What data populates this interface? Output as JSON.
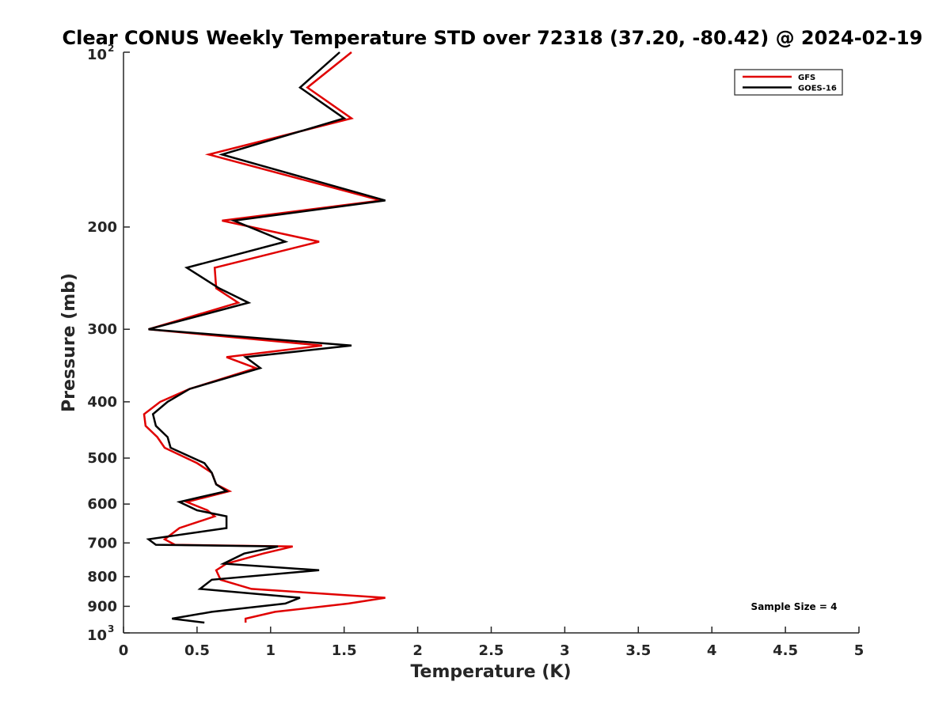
{
  "chart_data": {
    "type": "line",
    "title": "Clear CONUS Weekly Temperature STD over 72318 (37.20, -80.42) @ 2024-02-19",
    "xlabel": "Temperature (K)",
    "ylabel": "Pressure (mb)",
    "xlim": [
      0,
      5
    ],
    "ylim": [
      100,
      1000
    ],
    "yscale": "log",
    "y_reversed": true,
    "grid": false,
    "legend_position": "top-right",
    "x_ticks": [
      "0",
      "0.5",
      "1",
      "1.5",
      "2",
      "2.5",
      "3",
      "3.5",
      "4",
      "4.5",
      "5"
    ],
    "y_ticks": [
      {
        "value": 100,
        "base": "10",
        "exp": "2"
      },
      {
        "value": 200,
        "label": "200"
      },
      {
        "value": 300,
        "label": "300"
      },
      {
        "value": 400,
        "label": "400"
      },
      {
        "value": 500,
        "label": "500"
      },
      {
        "value": 600,
        "label": "600"
      },
      {
        "value": 700,
        "label": "700"
      },
      {
        "value": 800,
        "label": "800"
      },
      {
        "value": 900,
        "label": "900"
      },
      {
        "value": 1000,
        "base": "10",
        "exp": "3"
      }
    ],
    "annotation": "Sample Size = 4",
    "series": [
      {
        "name": "GFS",
        "color": "#e00000",
        "points": [
          [
            1.55,
            100
          ],
          [
            1.25,
            115
          ],
          [
            1.55,
            130
          ],
          [
            0.58,
            150
          ],
          [
            1.75,
            180
          ],
          [
            0.67,
            195
          ],
          [
            1.33,
            212
          ],
          [
            0.62,
            235
          ],
          [
            0.63,
            255
          ],
          [
            0.78,
            270
          ],
          [
            0.17,
            300
          ],
          [
            1.35,
            320
          ],
          [
            0.7,
            335
          ],
          [
            0.9,
            350
          ],
          [
            0.45,
            380
          ],
          [
            0.25,
            400
          ],
          [
            0.14,
            420
          ],
          [
            0.15,
            440
          ],
          [
            0.23,
            460
          ],
          [
            0.28,
            480
          ],
          [
            0.5,
            510
          ],
          [
            0.6,
            530
          ],
          [
            0.63,
            555
          ],
          [
            0.72,
            570
          ],
          [
            0.43,
            595
          ],
          [
            0.57,
            615
          ],
          [
            0.62,
            630
          ],
          [
            0.38,
            660
          ],
          [
            0.28,
            690
          ],
          [
            0.35,
            705
          ],
          [
            1.15,
            710
          ],
          [
            0.95,
            730
          ],
          [
            0.7,
            760
          ],
          [
            0.63,
            780
          ],
          [
            0.66,
            810
          ],
          [
            0.87,
            840
          ],
          [
            1.78,
            870
          ],
          [
            1.53,
            890
          ],
          [
            1.03,
            920
          ],
          [
            0.83,
            945
          ],
          [
            0.83,
            960
          ]
        ]
      },
      {
        "name": "GOES-16",
        "color": "#000000",
        "points": [
          [
            1.47,
            100
          ],
          [
            1.2,
            115
          ],
          [
            1.5,
            130
          ],
          [
            0.67,
            150
          ],
          [
            1.78,
            180
          ],
          [
            0.75,
            195
          ],
          [
            1.1,
            212
          ],
          [
            0.43,
            235
          ],
          [
            0.65,
            255
          ],
          [
            0.85,
            270
          ],
          [
            0.17,
            300
          ],
          [
            1.55,
            320
          ],
          [
            0.83,
            335
          ],
          [
            0.93,
            350
          ],
          [
            0.45,
            380
          ],
          [
            0.3,
            400
          ],
          [
            0.2,
            420
          ],
          [
            0.22,
            440
          ],
          [
            0.3,
            460
          ],
          [
            0.32,
            480
          ],
          [
            0.55,
            510
          ],
          [
            0.6,
            530
          ],
          [
            0.63,
            555
          ],
          [
            0.7,
            570
          ],
          [
            0.38,
            595
          ],
          [
            0.5,
            615
          ],
          [
            0.7,
            630
          ],
          [
            0.7,
            660
          ],
          [
            0.17,
            690
          ],
          [
            0.22,
            705
          ],
          [
            1.05,
            710
          ],
          [
            0.82,
            730
          ],
          [
            0.68,
            760
          ],
          [
            1.33,
            780
          ],
          [
            0.6,
            810
          ],
          [
            0.52,
            840
          ],
          [
            1.2,
            870
          ],
          [
            1.1,
            890
          ],
          [
            0.6,
            920
          ],
          [
            0.33,
            945
          ],
          [
            0.55,
            960
          ]
        ]
      }
    ]
  }
}
